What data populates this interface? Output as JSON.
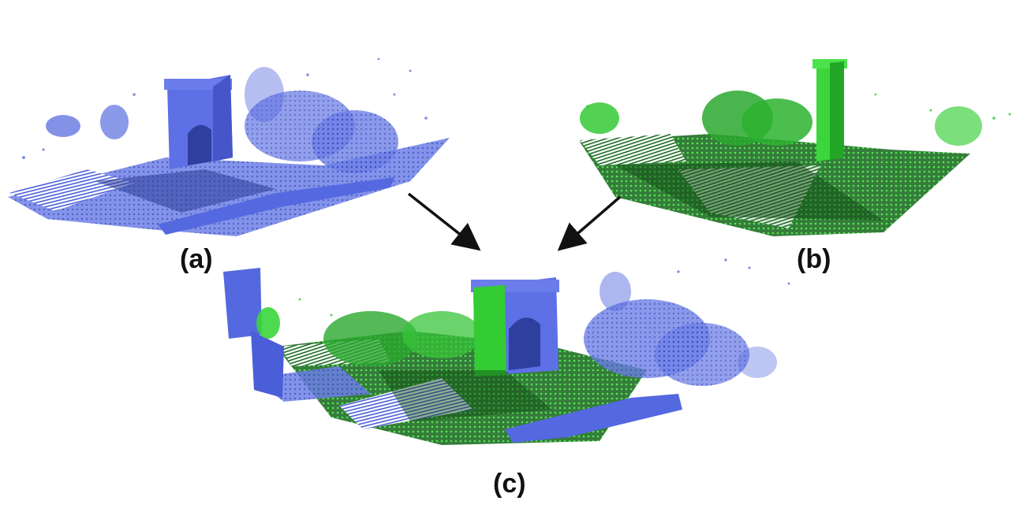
{
  "labels": {
    "a": "(a)",
    "b": "(b)",
    "c": "(c)"
  },
  "colors": {
    "scan_a": "#5468e0",
    "scan_a_dark": "#2c3c98",
    "scan_b": "#2fd12f",
    "scan_b_dark": "#0d4a12",
    "arrow": "#111111",
    "background": "#ffffff"
  }
}
